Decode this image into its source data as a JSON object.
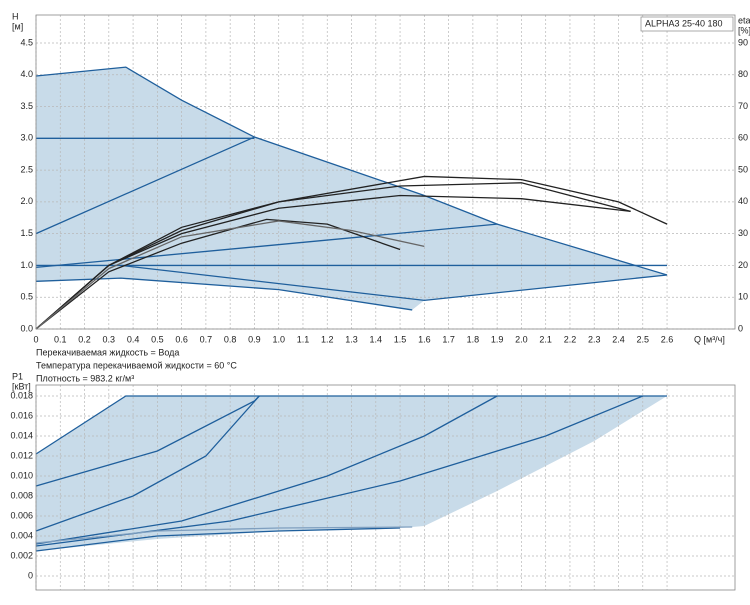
{
  "chart_data": [
    {
      "type": "line",
      "ylabel": [
        "H",
        "[м]"
      ],
      "y2label": [
        "eta",
        "[%]"
      ],
      "xlabel": "Q [м³/ч]",
      "annotation": "ALPHA3 25-40 180",
      "notes": [
        "Перекачиваемая жидкость = Вода",
        "Температура перекачиваемой жидкости = 60 °C",
        "Плотность = 983.2 кг/м³"
      ],
      "xlim": [
        0,
        2.88
      ],
      "ylim": [
        0,
        4.94
      ],
      "y2lim": [
        0,
        98.8
      ],
      "grid": true,
      "xticks": [
        0,
        0.1,
        0.2,
        0.3,
        0.4,
        0.5,
        0.6,
        0.7,
        0.8,
        0.9,
        {
          "value": 1,
          "label": "1.0"
        },
        1.1,
        1.2,
        1.3,
        1.4,
        1.5,
        1.6,
        1.7,
        1.8,
        1.9,
        {
          "value": 2,
          "label": "2.0"
        },
        2.1,
        2.2,
        2.3,
        2.4,
        2.5,
        2.6
      ],
      "yticks": [
        {
          "value": 0,
          "label": "0.0"
        },
        0.5,
        {
          "value": 1,
          "label": "1.0"
        },
        1.5,
        {
          "value": 2,
          "label": "2.0"
        },
        2.5,
        {
          "value": 3,
          "label": "3.0"
        },
        3.5,
        {
          "value": 4,
          "label": "4.0"
        },
        4.5
      ],
      "y2ticks": [
        0,
        10,
        20,
        30,
        40,
        50,
        60,
        70,
        80,
        90
      ],
      "area": {
        "color": "#c8dbe9",
        "x": [
          0,
          0.37,
          0.6,
          0.9,
          1.6,
          1.9,
          2.6,
          1.6,
          1.55,
          1.0,
          0.35,
          0
        ],
        "values": [
          3.98,
          4.12,
          3.6,
          3.02,
          2.1,
          1.65,
          0.85,
          0.45,
          0.3,
          0.62,
          0.8,
          0.75
        ]
      },
      "series": [
        {
          "color": "#1f5f9c",
          "x": [
            0,
            0.37,
            0.6,
            0.9,
            1.6,
            1.9,
            2.6
          ],
          "values": [
            3.98,
            4.12,
            3.6,
            3.02,
            2.1,
            1.65,
            0.85
          ]
        },
        {
          "color": "#1f5f9c",
          "x": [
            0,
            0.9
          ],
          "values": [
            3.0,
            3.0
          ]
        },
        {
          "color": "#1f5f9c",
          "x": [
            0,
            0.9
          ],
          "values": [
            1.5,
            3.02
          ]
        },
        {
          "color": "#1f5f9c",
          "x": [
            0,
            1.9
          ],
          "values": [
            0.97,
            1.65
          ]
        },
        {
          "color": "#1f5f9c",
          "x": [
            0,
            2.6
          ],
          "values": [
            1.0,
            1.0
          ]
        },
        {
          "color": "#1f5f9c",
          "x": [
            0,
            0.35,
            1.0,
            1.55
          ],
          "values": [
            0.75,
            0.8,
            0.62,
            0.3
          ]
        },
        {
          "color": "#1f5f9c",
          "x": [
            0.35,
            1.6,
            2.6
          ],
          "values": [
            1.0,
            0.45,
            0.85
          ]
        },
        {
          "color": "#222222",
          "axis": "y2",
          "x": [
            0,
            0.3,
            0.6,
            1.0,
            1.6,
            2.0,
            2.4,
            2.6
          ],
          "values": [
            0,
            20,
            32,
            40,
            48,
            47,
            40,
            33
          ]
        },
        {
          "color": "#222222",
          "axis": "y2",
          "x": [
            0,
            0.3,
            0.6,
            1.0,
            1.5,
            2.0,
            2.45
          ],
          "values": [
            0,
            20,
            31,
            40,
            45,
            46,
            37
          ]
        },
        {
          "color": "#222222",
          "axis": "y2",
          "x": [
            0,
            0.3,
            0.6,
            1.0,
            1.5,
            2.0,
            2.45
          ],
          "values": [
            0,
            20,
            30,
            38,
            42,
            41,
            37
          ]
        },
        {
          "color": "#222222",
          "axis": "y2",
          "x": [
            0,
            0.3,
            0.6,
            0.95,
            1.2,
            1.5
          ],
          "values": [
            0,
            18,
            27,
            34.5,
            33,
            25
          ]
        },
        {
          "color": "#666666",
          "axis": "y2",
          "x": [
            0,
            0.3,
            0.6,
            1.0,
            1.3,
            1.6
          ],
          "values": [
            0,
            19,
            29,
            34,
            31,
            26
          ]
        }
      ]
    },
    {
      "type": "line",
      "ylabel": [
        "P1",
        "[кВт]"
      ],
      "xlim": [
        0,
        2.88
      ],
      "ylim": [
        -0.0014,
        0.0191
      ],
      "grid": true,
      "yticks": [
        0,
        0.002,
        0.004,
        0.006,
        0.008,
        {
          "value": 0.01,
          "label": "0.010"
        },
        0.012,
        0.014,
        0.016,
        0.018
      ],
      "area": {
        "color": "#c8dbe9",
        "x": [
          0,
          0.37,
          2.6,
          2.3,
          1.9,
          1.6,
          1.5,
          1.0,
          0.5,
          0
        ],
        "values": [
          0.0122,
          0.018,
          0.018,
          0.0135,
          0.0085,
          0.005,
          0.0048,
          0.0045,
          0.0037,
          0.0025
        ]
      },
      "series": [
        {
          "color": "#1f5f9c",
          "x": [
            0,
            0.37,
            2.6
          ],
          "values": [
            0.0122,
            0.018,
            0.018
          ]
        },
        {
          "color": "#1f5f9c",
          "x": [
            0,
            0.5,
            0.9,
            0.92
          ],
          "values": [
            0.009,
            0.0125,
            0.0175,
            0.018
          ]
        },
        {
          "color": "#1f5f9c",
          "x": [
            0,
            0.4,
            0.7,
            0.92
          ],
          "values": [
            0.0045,
            0.008,
            0.012,
            0.018
          ]
        },
        {
          "color": "#1f5f9c",
          "x": [
            0,
            0.6,
            1.2,
            1.6,
            1.9
          ],
          "values": [
            0.0032,
            0.0055,
            0.01,
            0.014,
            0.018
          ]
        },
        {
          "color": "#1f5f9c",
          "x": [
            0,
            0.8,
            1.5,
            2.1,
            2.5
          ],
          "values": [
            0.003,
            0.0055,
            0.0095,
            0.014,
            0.018
          ]
        },
        {
          "color": "#1f5f9c",
          "x": [
            0,
            0.5,
            1.0,
            1.5
          ],
          "values": [
            0.0025,
            0.004,
            0.0045,
            0.0048
          ]
        },
        {
          "color": "#7f9fbf",
          "x": [
            0,
            0.5,
            1.0,
            1.55
          ],
          "values": [
            0.0033,
            0.0045,
            0.0048,
            0.0049
          ]
        }
      ]
    }
  ]
}
